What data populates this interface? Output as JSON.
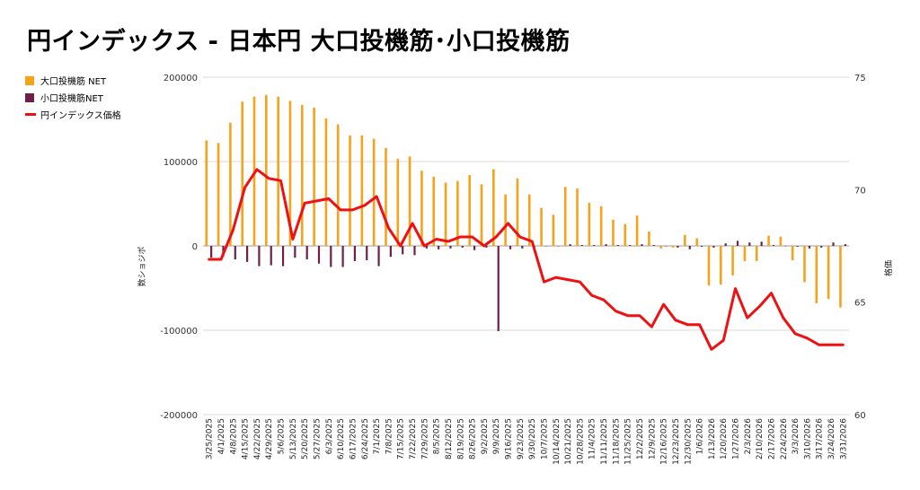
{
  "title": "円インデックス - 日本円 大口投機筋･小口投機筋",
  "colors": {
    "large_net": "#f6a21b",
    "small_net": "#6d2048",
    "index": "#ee1111",
    "grid": "#d9d9d9"
  },
  "chart_data": {
    "type": "bar",
    "title": "円インデックス - 日本円 大口投機筋･小口投機筋",
    "ylabel": "数ショジポ",
    "y2label": "格価",
    "ylim": [
      -200000,
      200000
    ],
    "y2lim": [
      60,
      75
    ],
    "yticks": [
      "200000",
      "100000",
      "0",
      "-100000",
      "-200000"
    ],
    "y2ticks": [
      "75",
      "70",
      "65",
      "60"
    ],
    "legend_position": "top-left",
    "grid": true,
    "x_tick_labels": [
      "3/25/2025",
      "4/1/2025",
      "4/8/2025",
      "4/15/2025",
      "4/22/2025",
      "4/29/2025",
      "5/6/2025",
      "5/13/2025",
      "5/20/2025",
      "5/27/2025",
      "6/3/2025",
      "6/10/2025",
      "6/17/2025",
      "6/24/2025",
      "7/1/2025",
      "7/8/2025",
      "7/15/2025",
      "7/22/2025",
      "7/29/2025",
      "8/5/2025",
      "8/12/2025",
      "8/19/2025",
      "8/26/2025",
      "9/2/2025",
      "9/9/2025",
      "9/16/2025",
      "9/23/2025",
      "9/30/2025",
      "10/7/2025",
      "10/14/2025",
      "10/21/2025",
      "10/28/2025",
      "11/4/2025",
      "11/11/2025",
      "11/18/2025",
      "11/25/2025",
      "12/2/2025",
      "12/9/2025",
      "12/16/2025",
      "12/23/2025",
      "12/30/2025",
      "1/6/2026",
      "1/13/2026",
      "1/20/2026",
      "1/27/2026",
      "2/3/2026",
      "2/10/2026",
      "2/17/2026",
      "2/24/2026",
      "3/3/2026",
      "3/10/2026",
      "3/17/2026",
      "3/24/2026",
      "3/31/2026"
    ],
    "series": [
      {
        "name": "大口投機筋 NET",
        "type": "bar",
        "axis": "left",
        "values": [
          125000,
          122000,
          146000,
          171000,
          177000,
          179000,
          177000,
          172000,
          167000,
          164000,
          151000,
          144000,
          131000,
          131000,
          127000,
          116000,
          103000,
          106000,
          89000,
          82000,
          75000,
          77000,
          84000,
          73000,
          91000,
          61000,
          80000,
          61000,
          45000,
          37000,
          70000,
          68000,
          51000,
          47000,
          31000,
          26000,
          36000,
          17000,
          -3000,
          -2000,
          13000,
          9000,
          -47000,
          -46000,
          -35000,
          -18000,
          -18000,
          12000,
          11000,
          -17000,
          -43000,
          -68000,
          -63000,
          -73000
        ]
      },
      {
        "name": "小口投機筋NET",
        "type": "bar",
        "axis": "left",
        "values": [
          -14000,
          -13000,
          -16000,
          -19000,
          -24000,
          -23000,
          -24000,
          -14000,
          -16000,
          -21000,
          -25000,
          -25000,
          -18000,
          -17000,
          -24000,
          -13000,
          -10000,
          -11000,
          -3000,
          -4000,
          -3000,
          -2000,
          -5000,
          -2000,
          -101000,
          -4000,
          -3000,
          -2000,
          0,
          0,
          2000,
          1000,
          1000,
          2000,
          1000,
          1000,
          2000,
          1000,
          0,
          -2000,
          -4000,
          -1000,
          -2000,
          3000,
          6000,
          4000,
          5000,
          1000,
          0,
          -1000,
          -3000,
          -2000,
          4000,
          2000
        ]
      },
      {
        "name": "円インデックス価格",
        "type": "line",
        "axis": "right",
        "values": [
          66.9,
          66.9,
          68.2,
          70.1,
          70.9,
          70.5,
          70.4,
          67.8,
          69.4,
          69.5,
          69.6,
          69.1,
          69.1,
          69.3,
          69.7,
          68.3,
          67.5,
          68.5,
          67.5,
          67.8,
          67.7,
          67.9,
          67.9,
          67.5,
          67.9,
          68.5,
          67.9,
          67.7,
          65.9,
          66.1,
          66.0,
          65.9,
          65.3,
          65.1,
          64.6,
          64.4,
          64.4,
          63.9,
          64.9,
          64.2,
          64.0,
          64.0,
          62.9,
          63.3,
          65.6,
          64.3,
          64.8,
          65.4,
          64.3,
          63.6,
          63.4,
          63.1,
          63.1,
          63.1
        ]
      }
    ]
  }
}
